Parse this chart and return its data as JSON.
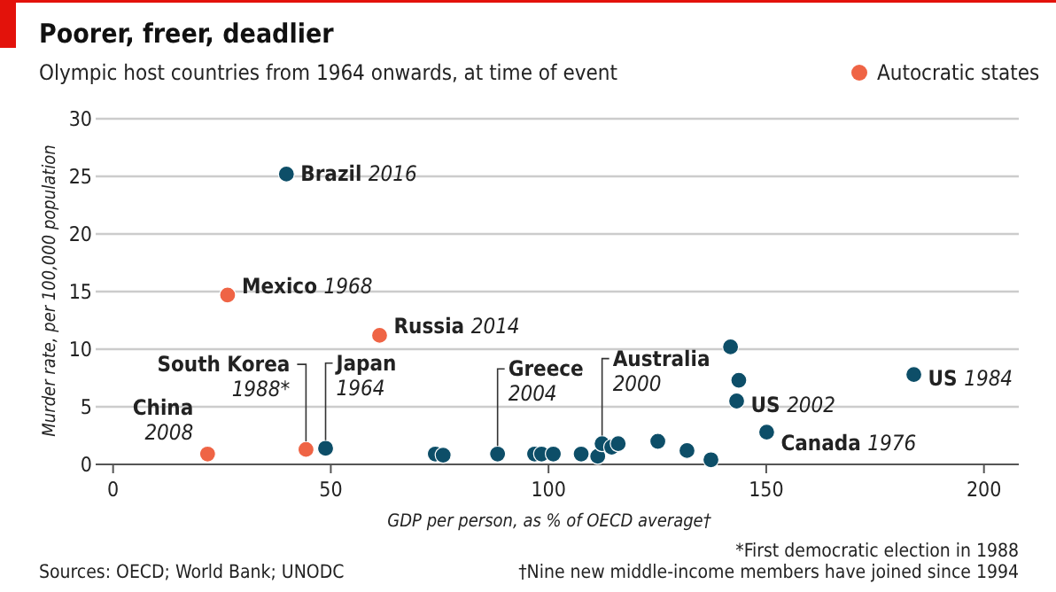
{
  "chart_data": {
    "type": "scatter",
    "title": "Poorer, freer, deadlier",
    "subtitle": "Olympic host countries from 1964 onwards, at time of event",
    "xlabel": "GDP per person, as % of OECD average†",
    "ylabel": "Murder rate, per 100,000 population",
    "xlim": [
      -4,
      208
    ],
    "xticks": [
      0,
      50,
      100,
      150,
      200
    ],
    "ylim": [
      0,
      30
    ],
    "yticks": [
      0,
      5,
      10,
      15,
      20,
      25,
      30
    ],
    "grid": "y",
    "legend": "top right",
    "marker": "circle",
    "series": [
      {
        "name": "Autocratic states",
        "color": "#ef6445",
        "x": [
          26.3,
          61.2,
          21.7,
          44.3
        ],
        "values": [
          14.7,
          11.2,
          0.9,
          1.3
        ]
      },
      {
        "color": "#0d4e68",
        "x": [
          39.8,
          48.8,
          74,
          75.8,
          88.3,
          96.8,
          98.4,
          101.1,
          107.5,
          111.3,
          112.3,
          114.5,
          116,
          125.1,
          131.8,
          137.3,
          141.8,
          143.7,
          143.2,
          150.1,
          183.9
        ],
        "values": [
          25.2,
          1.4,
          0.9,
          0.8,
          0.9,
          0.9,
          0.9,
          0.9,
          0.9,
          0.7,
          1.8,
          1.5,
          1.8,
          2.0,
          1.2,
          0.4,
          10.2,
          7.3,
          5.5,
          2.8,
          7.8
        ]
      }
    ],
    "annotations": [
      {
        "text": "Brazil 2016",
        "x": 39.8,
        "y": 25.2
      },
      {
        "text": "Mexico 1968",
        "x": 26.3,
        "y": 14.7
      },
      {
        "text": "Russia 2014",
        "x": 61.2,
        "y": 11.2
      },
      {
        "text": "China 2008",
        "x": 21.7,
        "y": 0.9
      },
      {
        "text": "South Korea 1988*",
        "x": 44.3,
        "y": 1.3
      },
      {
        "text": "Japan 1964",
        "x": 48.8,
        "y": 1.4
      },
      {
        "text": "Greece 2004",
        "x": 88.3,
        "y": 0.9
      },
      {
        "text": "Australia 2000",
        "x": 112.3,
        "y": 1.8
      },
      {
        "text": "US 2002",
        "x": 143.2,
        "y": 5.5
      },
      {
        "text": "Canada 1976",
        "x": 150.1,
        "y": 2.8
      },
      {
        "text": "US 1984",
        "x": 183.9,
        "y": 7.8
      },
      "*First democratic election in 1988",
      "†Nine new middle-income members have joined since 1994",
      "Sources: OECD; World Bank; UNODC"
    ]
  }
}
